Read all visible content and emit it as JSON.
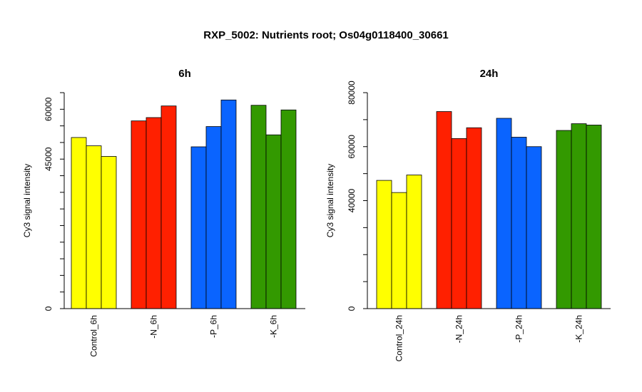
{
  "title": "RXP_5002: Nutrients root; Os04g0118400_30661",
  "chart_data": [
    {
      "type": "bar",
      "title": "6h",
      "ylabel": "Cy3 signal intensity",
      "ylim": [
        0,
        65000
      ],
      "yticks": [
        0,
        45000,
        60000
      ],
      "categories": [
        "Control_6h",
        "-N_6h",
        "-P_6h",
        "-K_6h"
      ],
      "series": [
        {
          "values": [
            51500,
            56500,
            48700,
            61200
          ]
        },
        {
          "values": [
            49000,
            57500,
            54800,
            52300
          ]
        },
        {
          "values": [
            45800,
            61000,
            62800,
            59800
          ]
        }
      ],
      "colors": [
        "#ffff00",
        "#ff2000",
        "#0a64ff",
        "#339900"
      ],
      "grid": false
    },
    {
      "type": "bar",
      "title": "24h",
      "ylabel": "Cy3 signal intensity",
      "ylim": [
        0,
        80000
      ],
      "yticks": [
        0,
        40000,
        60000,
        80000
      ],
      "categories": [
        "Control_24h",
        "-N_24h",
        "-P_24h",
        "-K_24h"
      ],
      "series": [
        {
          "values": [
            47500,
            73000,
            70500,
            66000
          ]
        },
        {
          "values": [
            43000,
            63000,
            63500,
            68500
          ]
        },
        {
          "values": [
            49500,
            67000,
            60000,
            68000
          ]
        }
      ],
      "colors": [
        "#ffff00",
        "#ff2000",
        "#0a64ff",
        "#339900"
      ],
      "grid": false
    }
  ]
}
